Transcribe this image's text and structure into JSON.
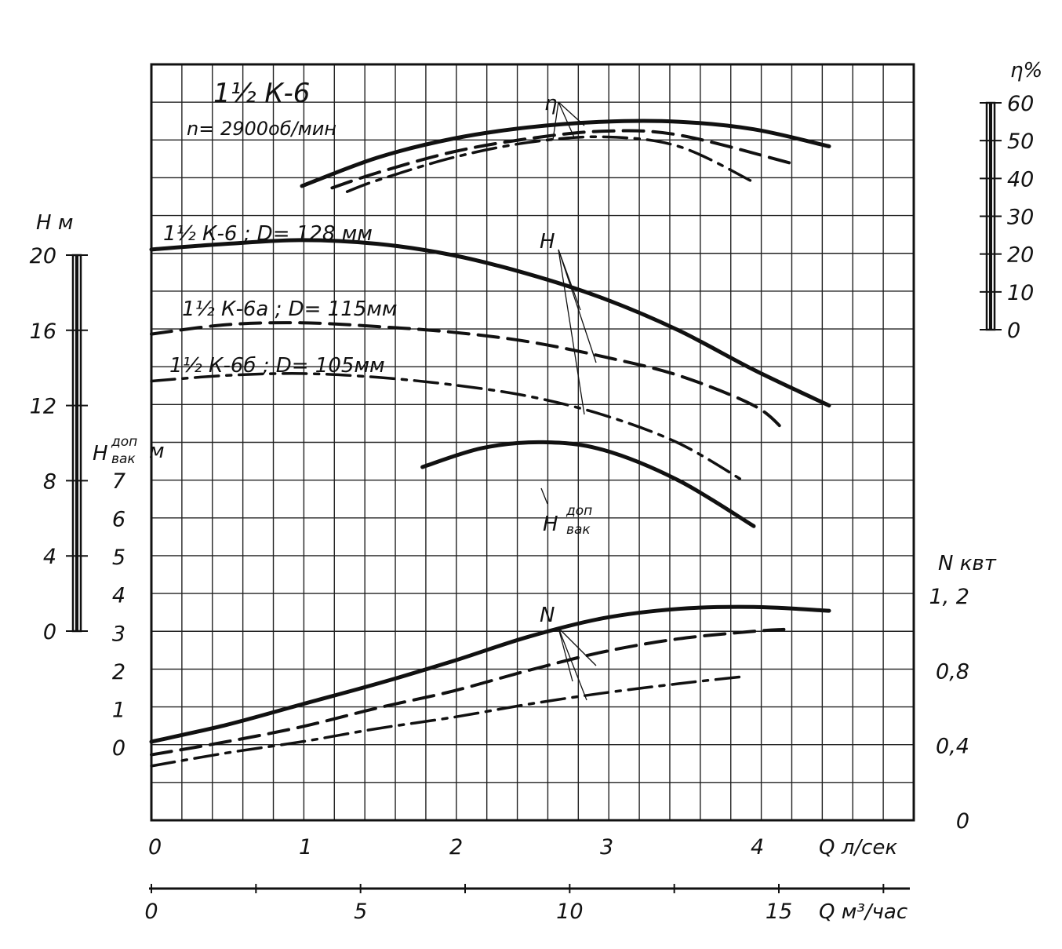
{
  "chart_data": {
    "type": "line",
    "title": "1½ К-6",
    "subtitle": "n= 2900об/мин",
    "x_axis": {
      "label": "Q л/сек",
      "range": [
        0,
        5
      ],
      "ticks": [
        "0",
        "1",
        "2",
        "3",
        "4"
      ],
      "tick_values": [
        0,
        1,
        2,
        3,
        4
      ]
    },
    "x2_axis": {
      "label": "Q м³/час",
      "ticks": [
        "0",
        "5",
        "10",
        "15"
      ],
      "tick_values": [
        0,
        5,
        10,
        15
      ]
    },
    "axes": {
      "H": {
        "label": "H м",
        "range": [
          0,
          20
        ],
        "ticks": [
          "0",
          "4",
          "8",
          "12",
          "16",
          "20"
        ],
        "tick_values": [
          0,
          4,
          8,
          12,
          16,
          20
        ]
      },
      "Hvac": {
        "label": "H",
        "sup": "доп",
        "sub": "вак",
        "unit": "м",
        "range": [
          0,
          7
        ],
        "ticks": [
          "0",
          "1",
          "2",
          "3",
          "4",
          "5",
          "6",
          "7"
        ],
        "tick_values": [
          0,
          1,
          2,
          3,
          4,
          5,
          6,
          7
        ]
      },
      "eta": {
        "label": "η%",
        "range": [
          0,
          60
        ],
        "ticks": [
          "0",
          "10",
          "20",
          "30",
          "40",
          "50",
          "60"
        ],
        "tick_values": [
          0,
          10,
          20,
          30,
          40,
          50,
          60
        ]
      },
      "N": {
        "label": "N квт",
        "range": [
          0,
          1.2
        ],
        "ticks": [
          "0",
          "0,4",
          "0,8",
          "1, 2"
        ],
        "tick_values": [
          0,
          0.4,
          0.8,
          1.2
        ]
      }
    },
    "grid": true,
    "series": [
      {
        "name": "1½ К-6 ; D= 128 мм",
        "group": "H",
        "style": "solid",
        "x": [
          0,
          0.5,
          1,
          1.5,
          2,
          2.5,
          3,
          3.5,
          4,
          4.5
        ],
        "y": [
          20.3,
          20.6,
          20.8,
          20.6,
          20.0,
          19.0,
          17.7,
          16.0,
          13.9,
          12.0
        ]
      },
      {
        "name": "1½ К-6а ; D= 115мм",
        "group": "H",
        "style": "dash",
        "x": [
          0,
          0.5,
          1,
          1.5,
          2,
          2.5,
          3,
          3.5,
          4,
          4.2
        ],
        "y": [
          15.8,
          16.3,
          16.4,
          16.2,
          15.9,
          15.4,
          14.6,
          13.6,
          12.0,
          10.7
        ]
      },
      {
        "name": "1½ К-6б ; D= 105мм",
        "group": "H",
        "style": "dashdot",
        "x": [
          0,
          0.5,
          1,
          1.5,
          2,
          2.5,
          3,
          3.5,
          3.95
        ],
        "y": [
          13.3,
          13.6,
          13.7,
          13.5,
          13.1,
          12.5,
          11.5,
          10.0,
          7.9
        ]
      },
      {
        "name": "",
        "group": "eta",
        "style": "solid",
        "x": [
          1,
          1.5,
          2,
          2.5,
          3,
          3.5,
          4,
          4.5
        ],
        "y": [
          38,
          45.5,
          50.5,
          53.5,
          55,
          55,
          53,
          48.5
        ]
      },
      {
        "name": "",
        "group": "eta",
        "style": "dash",
        "x": [
          1.2,
          1.5,
          2,
          2.5,
          3,
          3.5,
          4.25
        ],
        "y": [
          37.5,
          41.5,
          47,
          50.5,
          52.5,
          51.5,
          44
        ]
      },
      {
        "name": "",
        "group": "eta",
        "style": "dashdot",
        "x": [
          1.3,
          1.5,
          2,
          2.5,
          3,
          3.5,
          4.0
        ],
        "y": [
          36.5,
          39.5,
          45.5,
          49.5,
          51,
          48.5,
          39
        ]
      },
      {
        "name": "",
        "group": "Hvac",
        "style": "solid",
        "x": [
          1.8,
          2.2,
          2.6,
          3.0,
          3.5,
          4.0
        ],
        "y": [
          7.35,
          7.85,
          8.0,
          7.8,
          7.0,
          5.8
        ]
      },
      {
        "name": "",
        "group": "N",
        "style": "solid",
        "x": [
          0,
          0.5,
          1,
          1.5,
          2,
          2.5,
          3,
          3.5,
          4,
          4.5
        ],
        "y": [
          0.42,
          0.51,
          0.62,
          0.73,
          0.85,
          0.98,
          1.08,
          1.13,
          1.14,
          1.12
        ]
      },
      {
        "name": "",
        "group": "N",
        "style": "dash",
        "x": [
          0,
          0.5,
          1,
          1.5,
          2,
          2.5,
          3,
          3.5,
          4,
          4.2
        ],
        "y": [
          0.35,
          0.42,
          0.5,
          0.6,
          0.69,
          0.8,
          0.9,
          0.97,
          1.01,
          1.02
        ]
      },
      {
        "name": "",
        "group": "N",
        "style": "dashdot",
        "x": [
          0,
          0.5,
          1,
          1.5,
          2,
          2.5,
          3,
          3.5,
          3.95
        ],
        "y": [
          0.29,
          0.36,
          0.42,
          0.49,
          0.55,
          0.62,
          0.68,
          0.73,
          0.77
        ]
      }
    ],
    "annotations": [
      {
        "label": "η"
      },
      {
        "label": "H"
      },
      {
        "label": "N"
      },
      {
        "label": "H",
        "sup": "доп",
        "sub": "вак"
      }
    ],
    "series_labels": [
      "1½ К-6 ; D= 128 мм",
      "1½ К-6а ; D= 115мм",
      "1½ К-6б ; D= 105мм"
    ]
  }
}
